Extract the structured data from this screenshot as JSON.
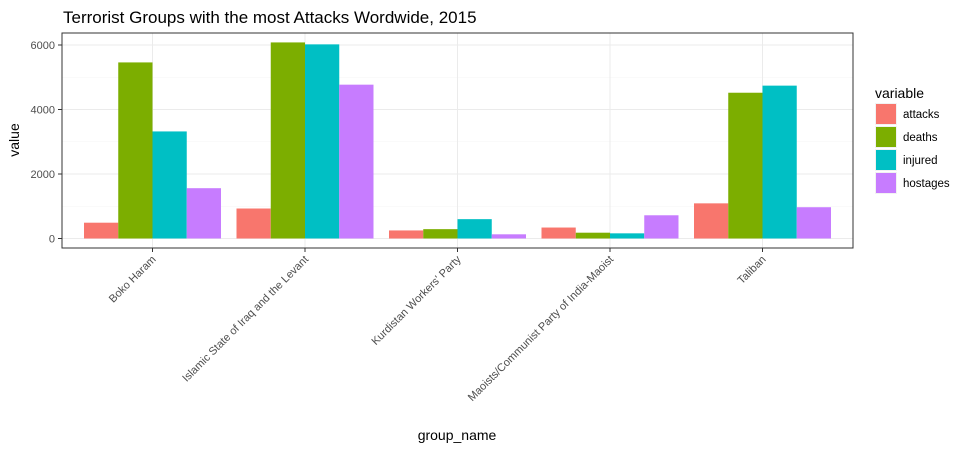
{
  "chart_data": {
    "type": "bar",
    "title": "Terrorist Groups with the most Attacks Wordwide, 2015",
    "xlabel": "group_name",
    "ylabel": "value",
    "ylim": [
      -300,
      6400
    ],
    "yticks": [
      0,
      2000,
      4000,
      6000
    ],
    "categories": [
      "Boko Haram",
      "Islamic State of Iraq and the Levant",
      "Kurdistan Workers' Party",
      "Maoists/Communist Party of India-Maoist",
      "Taliban"
    ],
    "legend_title": "variable",
    "legend_position": "right",
    "grid": true,
    "series": [
      {
        "name": "attacks",
        "color": "#F8766D",
        "values": [
          490,
          930,
          250,
          340,
          1090
        ]
      },
      {
        "name": "deaths",
        "color": "#7CAE00",
        "values": [
          5460,
          6080,
          290,
          180,
          4520
        ]
      },
      {
        "name": "injured",
        "color": "#00BFC4",
        "values": [
          3320,
          6020,
          600,
          160,
          4740
        ]
      },
      {
        "name": "hostages",
        "color": "#C77CFF",
        "values": [
          1560,
          4770,
          130,
          720,
          970
        ]
      }
    ]
  }
}
